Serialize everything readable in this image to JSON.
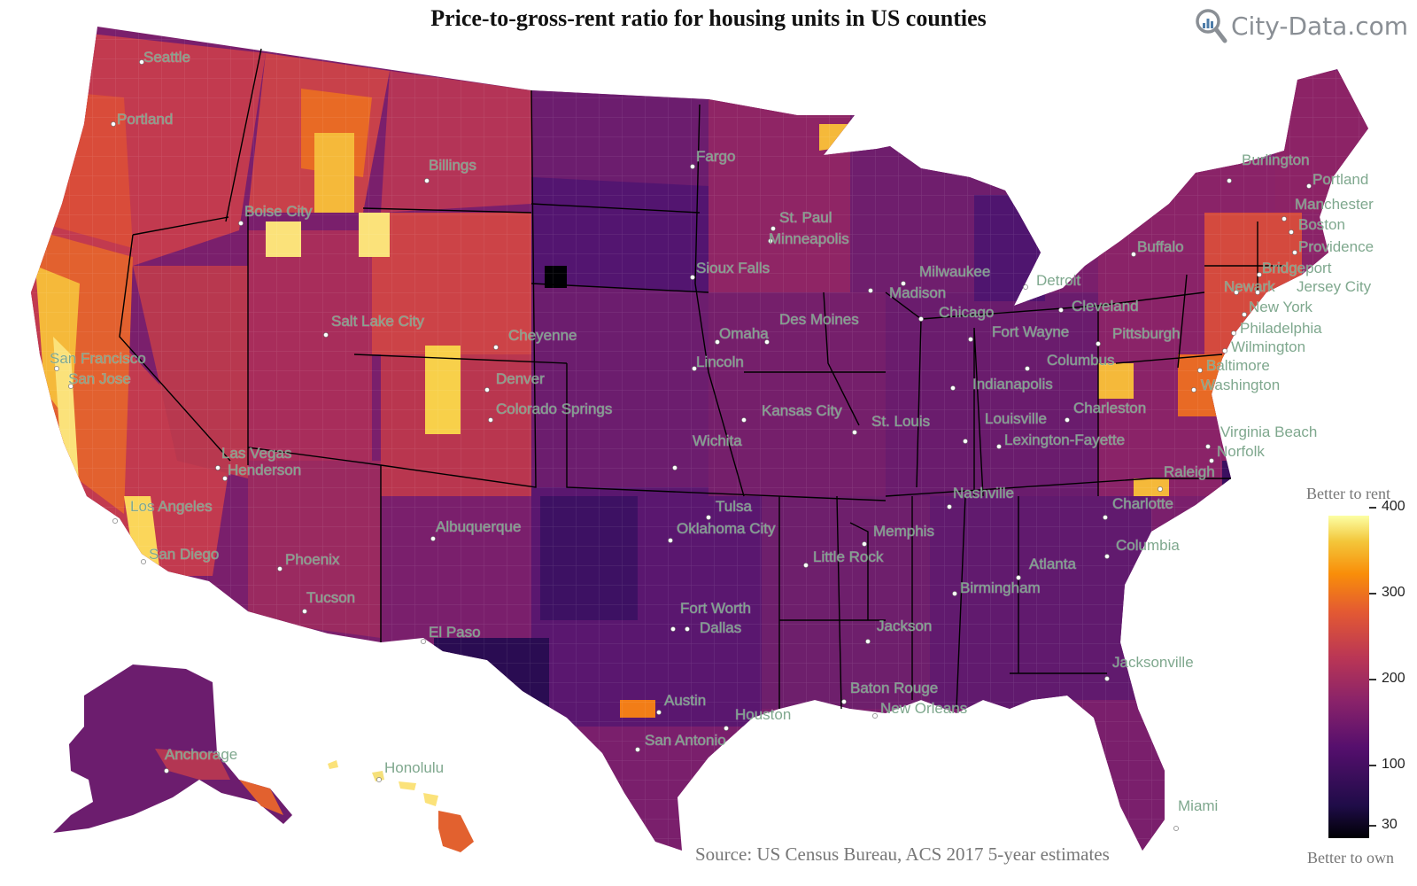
{
  "title": "Price-to-gross-rent ratio for housing units in US counties",
  "brand": "City-Data.com",
  "source": "Source: US Census Bureau, ACS 2017 5-year estimates",
  "legend": {
    "top_label": "Better to rent",
    "bottom_label": "Better to own",
    "ticks": [
      "400",
      "300",
      "200",
      "100",
      "30"
    ],
    "colormap": [
      "#000004",
      "#1f0c48",
      "#550f6d",
      "#88226a",
      "#ba3655",
      "#e35933",
      "#f98e09",
      "#f3c63a",
      "#fcffa4"
    ]
  },
  "colors": {
    "low": "#1f0c48",
    "mid": "#88226a",
    "high": "#f98e09",
    "very_high": "#fcffa4",
    "city_label": "#7fa88e"
  },
  "cities": [
    "Seattle",
    "Portland",
    "Billings",
    "Boise City",
    "Fargo",
    "St. Paul",
    "Minneapolis",
    "Burlington",
    "Portland",
    "Manchester",
    "Boston",
    "Providence",
    "Bridgeport",
    "Buffalo",
    "Newark",
    "Jersey City",
    "New York",
    "Philadelphia",
    "Wilmington",
    "Baltimore",
    "Washington",
    "Milwaukee",
    "Madison",
    "Detroit",
    "Chicago",
    "Cleveland",
    "Pittsburgh",
    "Fort Wayne",
    "Columbus",
    "Indianapolis",
    "Sioux Falls",
    "Des Moines",
    "Omaha",
    "Lincoln",
    "Cheyenne",
    "Salt Lake City",
    "San Francisco",
    "San Jose",
    "Denver",
    "Colorado Springs",
    "Kansas City",
    "St. Louis",
    "Louisville",
    "Lexington-Fayette",
    "Charleston",
    "Virginia Beach",
    "Norfolk",
    "Wichita",
    "Las Vegas",
    "Henderson",
    "Los Angeles",
    "San Diego",
    "Raleigh",
    "Nashville",
    "Charlotte",
    "Tulsa",
    "Oklahoma City",
    "Albuquerque",
    "Memphis",
    "Phoenix",
    "Little Rock",
    "Columbia",
    "Atlanta",
    "Birmingham",
    "Tucson",
    "Fort Worth",
    "Dallas",
    "El Paso",
    "Jackson",
    "Jacksonville",
    "Baton Rouge",
    "New Orleans",
    "Austin",
    "Houston",
    "San Antonio",
    "Anchorage",
    "Honolulu",
    "Miami"
  ]
}
